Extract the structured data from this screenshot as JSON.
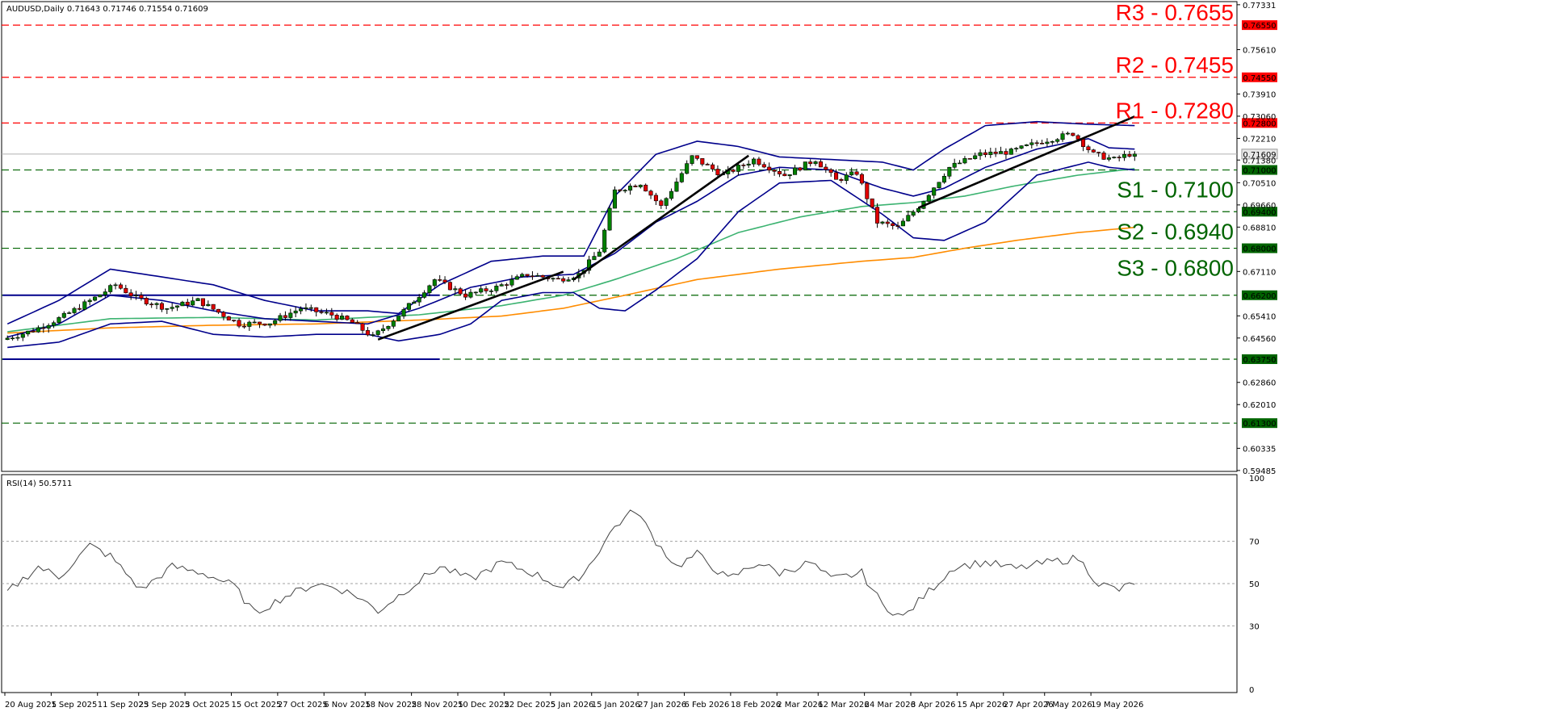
{
  "header": {
    "symbol_line": "AUDUSD,Daily  0.71643 0.71746 0.71554 0.71609",
    "indicator_line": "RSI(14) 50.5711"
  },
  "colors": {
    "resistance": "#ff0000",
    "support": "#006400",
    "bollinger": "#00008b",
    "ma_fast": "#3cb371",
    "ma_slow": "#ff8c00",
    "trendline": "#000000",
    "bull_candle": "#008000",
    "bear_candle": "#e00000",
    "rsi_line": "#444444"
  },
  "chart_data": [
    {
      "type": "candlestick",
      "symbol": "AUDUSD",
      "timeframe": "Daily",
      "last": {
        "open": 0.71643,
        "high": 0.71746,
        "low": 0.71554,
        "close": 0.71609
      },
      "ylim": [
        0.5945,
        0.7745
      ],
      "y_ticks": [
        "0.77331",
        "0.76550",
        "0.75610",
        "0.74550",
        "0.73910",
        "0.73060",
        "0.72800",
        "0.72210",
        "0.71609",
        "0.71380",
        "0.71000",
        "0.70510",
        "0.69660",
        "0.69400",
        "0.68810",
        "0.68000",
        "0.67110",
        "0.66200",
        "0.65410",
        "0.64560",
        "0.63750",
        "0.62860",
        "0.62010",
        "0.61300",
        "0.60335",
        "0.59485"
      ],
      "x_ticks": [
        "20 Aug 2025",
        "1 Sep 2025",
        "11 Sep 2025",
        "23 Sep 2025",
        "3 Oct 2025",
        "15 Oct 2025",
        "27 Oct 2025",
        "6 Nov 2025",
        "18 Nov 2025",
        "28 Nov 2025",
        "10 Dec 2025",
        "22 Dec 2025",
        "5 Jan 2026",
        "15 Jan 2026",
        "27 Jan 2026",
        "6 Feb 2026",
        "18 Feb 2026",
        "2 Mar 2026",
        "12 Mar 2026",
        "24 Mar 2026",
        "3 Apr 2026",
        "15 Apr 2026",
        "27 Apr 2026",
        "7 May 2026",
        "19 May 2026"
      ],
      "levels": [
        {
          "name": "R3",
          "label": "R3 - 0.7655",
          "value": 0.7655,
          "axis_tag": "0.76550",
          "kind": "resistance"
        },
        {
          "name": "R2",
          "label": "R2 - 0.7455",
          "value": 0.7455,
          "axis_tag": "0.74550",
          "kind": "resistance"
        },
        {
          "name": "R1",
          "label": "R1 - 0.7280",
          "value": 0.728,
          "axis_tag": "0.72800",
          "kind": "resistance"
        },
        {
          "name": "S1",
          "label": "S1 - 0.7100",
          "value": 0.71,
          "axis_tag": "0.71000",
          "kind": "support"
        },
        {
          "name": "S2",
          "label": "S2 - 0.6940",
          "value": 0.694,
          "axis_tag": "0.69400",
          "kind": "support"
        },
        {
          "name": "S3",
          "label": "S3 - 0.6800",
          "value": 0.68,
          "axis_tag": "0.68000",
          "kind": "support"
        },
        {
          "name": "L6620",
          "label": "",
          "value": 0.662,
          "axis_tag": "0.66200",
          "kind": "support"
        },
        {
          "name": "L6375",
          "label": "",
          "value": 0.6375,
          "axis_tag": "0.63750",
          "kind": "support"
        },
        {
          "name": "L6130",
          "label": "",
          "value": 0.613,
          "axis_tag": "0.61300",
          "kind": "support"
        }
      ],
      "last_price_tag": "0.71609",
      "range_lines": [
        {
          "value": 0.662,
          "from_bar": 0,
          "to_bar": 84
        },
        {
          "value": 0.6375,
          "from_bar": 0,
          "to_bar": 84
        }
      ],
      "trendlines": [
        {
          "from": {
            "bar": 72,
            "price": 0.645
          },
          "to": {
            "bar": 108,
            "price": 0.671
          }
        },
        {
          "from": {
            "bar": 110,
            "price": 0.668
          },
          "to": {
            "bar": 144,
            "price": 0.7155
          }
        },
        {
          "from": {
            "bar": 177,
            "price": 0.6955
          },
          "to": {
            "bar": 219,
            "price": 0.7305
          }
        }
      ],
      "price_path": [
        [
          0,
          0.645
        ],
        [
          6,
          0.6485
        ],
        [
          12,
          0.654
        ],
        [
          18,
          0.661
        ],
        [
          22,
          0.666
        ],
        [
          26,
          0.661
        ],
        [
          32,
          0.657
        ],
        [
          38,
          0.66
        ],
        [
          42,
          0.6555
        ],
        [
          46,
          0.651
        ],
        [
          52,
          0.6515
        ],
        [
          58,
          0.657
        ],
        [
          64,
          0.6545
        ],
        [
          68,
          0.6515
        ],
        [
          72,
          0.646
        ],
        [
          78,
          0.656
        ],
        [
          84,
          0.668
        ],
        [
          90,
          0.662
        ],
        [
          96,
          0.665
        ],
        [
          102,
          0.67
        ],
        [
          108,
          0.668
        ],
        [
          112,
          0.67
        ],
        [
          116,
          0.679
        ],
        [
          119,
          0.702
        ],
        [
          124,
          0.705
        ],
        [
          128,
          0.696
        ],
        [
          134,
          0.715
        ],
        [
          140,
          0.708
        ],
        [
          146,
          0.714
        ],
        [
          152,
          0.708
        ],
        [
          158,
          0.714
        ],
        [
          162,
          0.706
        ],
        [
          166,
          0.709
        ],
        [
          170,
          0.69
        ],
        [
          174,
          0.688
        ],
        [
          178,
          0.696
        ],
        [
          184,
          0.711
        ],
        [
          190,
          0.716
        ],
        [
          196,
          0.717
        ],
        [
          202,
          0.721
        ],
        [
          208,
          0.724
        ],
        [
          212,
          0.716
        ],
        [
          216,
          0.714
        ],
        [
          219,
          0.7161
        ]
      ],
      "bollinger_upper": [
        [
          0,
          0.651
        ],
        [
          10,
          0.66
        ],
        [
          20,
          0.672
        ],
        [
          30,
          0.669
        ],
        [
          40,
          0.666
        ],
        [
          50,
          0.66
        ],
        [
          60,
          0.656
        ],
        [
          70,
          0.656
        ],
        [
          76,
          0.655
        ],
        [
          84,
          0.666
        ],
        [
          94,
          0.675
        ],
        [
          104,
          0.677
        ],
        [
          112,
          0.677
        ],
        [
          118,
          0.7
        ],
        [
          126,
          0.716
        ],
        [
          134,
          0.721
        ],
        [
          142,
          0.719
        ],
        [
          150,
          0.715
        ],
        [
          160,
          0.714
        ],
        [
          170,
          0.713
        ],
        [
          176,
          0.71
        ],
        [
          182,
          0.718
        ],
        [
          190,
          0.727
        ],
        [
          200,
          0.7285
        ],
        [
          210,
          0.7275
        ],
        [
          219,
          0.727
        ]
      ],
      "bollinger_middle": [
        [
          0,
          0.646
        ],
        [
          10,
          0.651
        ],
        [
          20,
          0.662
        ],
        [
          30,
          0.66
        ],
        [
          40,
          0.656
        ],
        [
          50,
          0.653
        ],
        [
          60,
          0.652
        ],
        [
          70,
          0.651
        ],
        [
          80,
          0.657
        ],
        [
          90,
          0.665
        ],
        [
          100,
          0.669
        ],
        [
          110,
          0.67
        ],
        [
          118,
          0.678
        ],
        [
          126,
          0.69
        ],
        [
          134,
          0.698
        ],
        [
          142,
          0.708
        ],
        [
          150,
          0.711
        ],
        [
          160,
          0.71
        ],
        [
          170,
          0.703
        ],
        [
          176,
          0.7
        ],
        [
          182,
          0.703
        ],
        [
          190,
          0.711
        ],
        [
          200,
          0.718
        ],
        [
          210,
          0.722
        ],
        [
          214,
          0.7185
        ],
        [
          219,
          0.718
        ]
      ],
      "bollinger_lower": [
        [
          0,
          0.642
        ],
        [
          10,
          0.644
        ],
        [
          20,
          0.651
        ],
        [
          30,
          0.652
        ],
        [
          40,
          0.647
        ],
        [
          50,
          0.646
        ],
        [
          60,
          0.647
        ],
        [
          70,
          0.647
        ],
        [
          76,
          0.6445
        ],
        [
          84,
          0.647
        ],
        [
          90,
          0.651
        ],
        [
          96,
          0.66
        ],
        [
          104,
          0.663
        ],
        [
          110,
          0.663
        ],
        [
          115,
          0.657
        ],
        [
          120,
          0.656
        ],
        [
          126,
          0.664
        ],
        [
          134,
          0.676
        ],
        [
          142,
          0.694
        ],
        [
          150,
          0.705
        ],
        [
          160,
          0.706
        ],
        [
          170,
          0.693
        ],
        [
          176,
          0.684
        ],
        [
          182,
          0.683
        ],
        [
          190,
          0.69
        ],
        [
          200,
          0.708
        ],
        [
          210,
          0.713
        ],
        [
          214,
          0.711
        ],
        [
          219,
          0.71
        ]
      ],
      "ma_fast": [
        [
          0,
          0.648
        ],
        [
          20,
          0.653
        ],
        [
          40,
          0.6535
        ],
        [
          60,
          0.6525
        ],
        [
          80,
          0.6545
        ],
        [
          96,
          0.658
        ],
        [
          108,
          0.662
        ],
        [
          118,
          0.668
        ],
        [
          130,
          0.676
        ],
        [
          142,
          0.686
        ],
        [
          154,
          0.692
        ],
        [
          166,
          0.696
        ],
        [
          176,
          0.6975
        ],
        [
          186,
          0.7
        ],
        [
          196,
          0.704
        ],
        [
          208,
          0.708
        ],
        [
          219,
          0.7105
        ]
      ],
      "ma_slow": [
        [
          0,
          0.6475
        ],
        [
          20,
          0.6495
        ],
        [
          40,
          0.6505
        ],
        [
          60,
          0.651
        ],
        [
          80,
          0.6525
        ],
        [
          96,
          0.654
        ],
        [
          108,
          0.657
        ],
        [
          120,
          0.662
        ],
        [
          134,
          0.668
        ],
        [
          150,
          0.672
        ],
        [
          166,
          0.675
        ],
        [
          176,
          0.6765
        ],
        [
          186,
          0.68
        ],
        [
          196,
          0.683
        ],
        [
          208,
          0.686
        ],
        [
          219,
          0.688
        ]
      ]
    },
    {
      "type": "line",
      "name": "RSI(14) 50.5711",
      "ylim": [
        0,
        100
      ],
      "y_ticks": [
        "100",
        "70",
        "50",
        "30",
        "0"
      ],
      "guide_levels": [
        70,
        50,
        30
      ],
      "values": [
        [
          0,
          46
        ],
        [
          6,
          58
        ],
        [
          10,
          53
        ],
        [
          16,
          68
        ],
        [
          20,
          63
        ],
        [
          26,
          47
        ],
        [
          32,
          58
        ],
        [
          38,
          55
        ],
        [
          44,
          49
        ],
        [
          48,
          36
        ],
        [
          54,
          44
        ],
        [
          60,
          50
        ],
        [
          64,
          48
        ],
        [
          68,
          44
        ],
        [
          72,
          37
        ],
        [
          78,
          48
        ],
        [
          84,
          58
        ],
        [
          90,
          52
        ],
        [
          96,
          60
        ],
        [
          102,
          55
        ],
        [
          108,
          48
        ],
        [
          112,
          55
        ],
        [
          118,
          77
        ],
        [
          122,
          85
        ],
        [
          126,
          70
        ],
        [
          130,
          58
        ],
        [
          134,
          64
        ],
        [
          140,
          52
        ],
        [
          146,
          60
        ],
        [
          150,
          55
        ],
        [
          156,
          60
        ],
        [
          160,
          52
        ],
        [
          166,
          55
        ],
        [
          170,
          40
        ],
        [
          174,
          34
        ],
        [
          178,
          44
        ],
        [
          184,
          58
        ],
        [
          190,
          60
        ],
        [
          196,
          57
        ],
        [
          202,
          60
        ],
        [
          208,
          62
        ],
        [
          212,
          50
        ],
        [
          216,
          47
        ],
        [
          219,
          50.5711
        ]
      ]
    }
  ]
}
